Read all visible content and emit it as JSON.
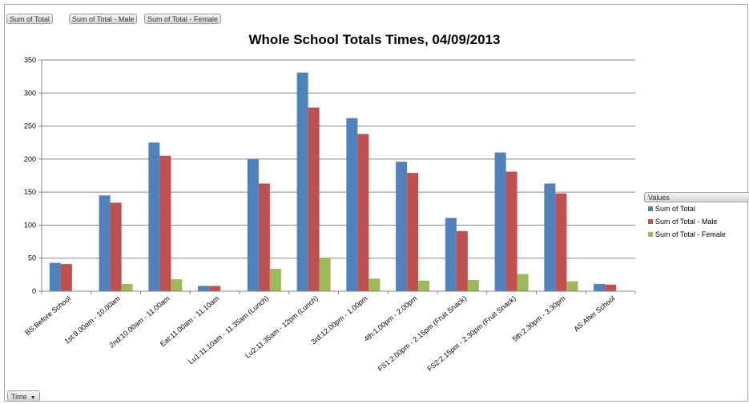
{
  "field_buttons": [
    "Sum of Total",
    "Sum of Total - Male",
    "Sum of Total - Female"
  ],
  "axis_field_button": "Time",
  "dropdown_arrow": "▼",
  "legend_header": "Values",
  "colors": {
    "total": "#4f81bd",
    "male": "#c0504d",
    "female": "#9bbb59",
    "gridline": "#868686",
    "axis": "#868686"
  },
  "chart_data": {
    "type": "bar",
    "title": "Whole School Totals Times, 04/09/2013",
    "xlabel": "",
    "ylabel": "",
    "ylim": [
      0,
      350
    ],
    "yticks": [
      0,
      50,
      100,
      150,
      200,
      250,
      300,
      350
    ],
    "grid": true,
    "legend_position": "right",
    "categories": [
      "BS:Before School",
      "1st:9.00am - 10.00am",
      "2nd:10.00am - 11.00am",
      "Eat:11.00am - 11.10am",
      "Lu1:11.10am - 11.35am (Lunch)",
      "Lu2:11.35am - 12pm (Lunch)",
      "3rd:12.00pm - 1.00pm",
      "4th:1.00pm - 2.00pm",
      "FS1:2.00pm - 2.15pm (Fruit Snack)",
      "FS2:2.15pm - 2.30pm (Fruit Snack)",
      "5th:2.30pm - 3.30pm",
      "AS:After School"
    ],
    "series": [
      {
        "name": "Sum of Total",
        "values": [
          43,
          145,
          225,
          8,
          200,
          331,
          262,
          196,
          111,
          210,
          163,
          11
        ]
      },
      {
        "name": "Sum of Total - Male",
        "values": [
          41,
          134,
          205,
          8,
          163,
          278,
          238,
          179,
          91,
          181,
          148,
          10
        ]
      },
      {
        "name": "Sum of Total - Female",
        "values": [
          0,
          11,
          18,
          0,
          34,
          51,
          19,
          16,
          17,
          26,
          15,
          0
        ]
      }
    ]
  }
}
